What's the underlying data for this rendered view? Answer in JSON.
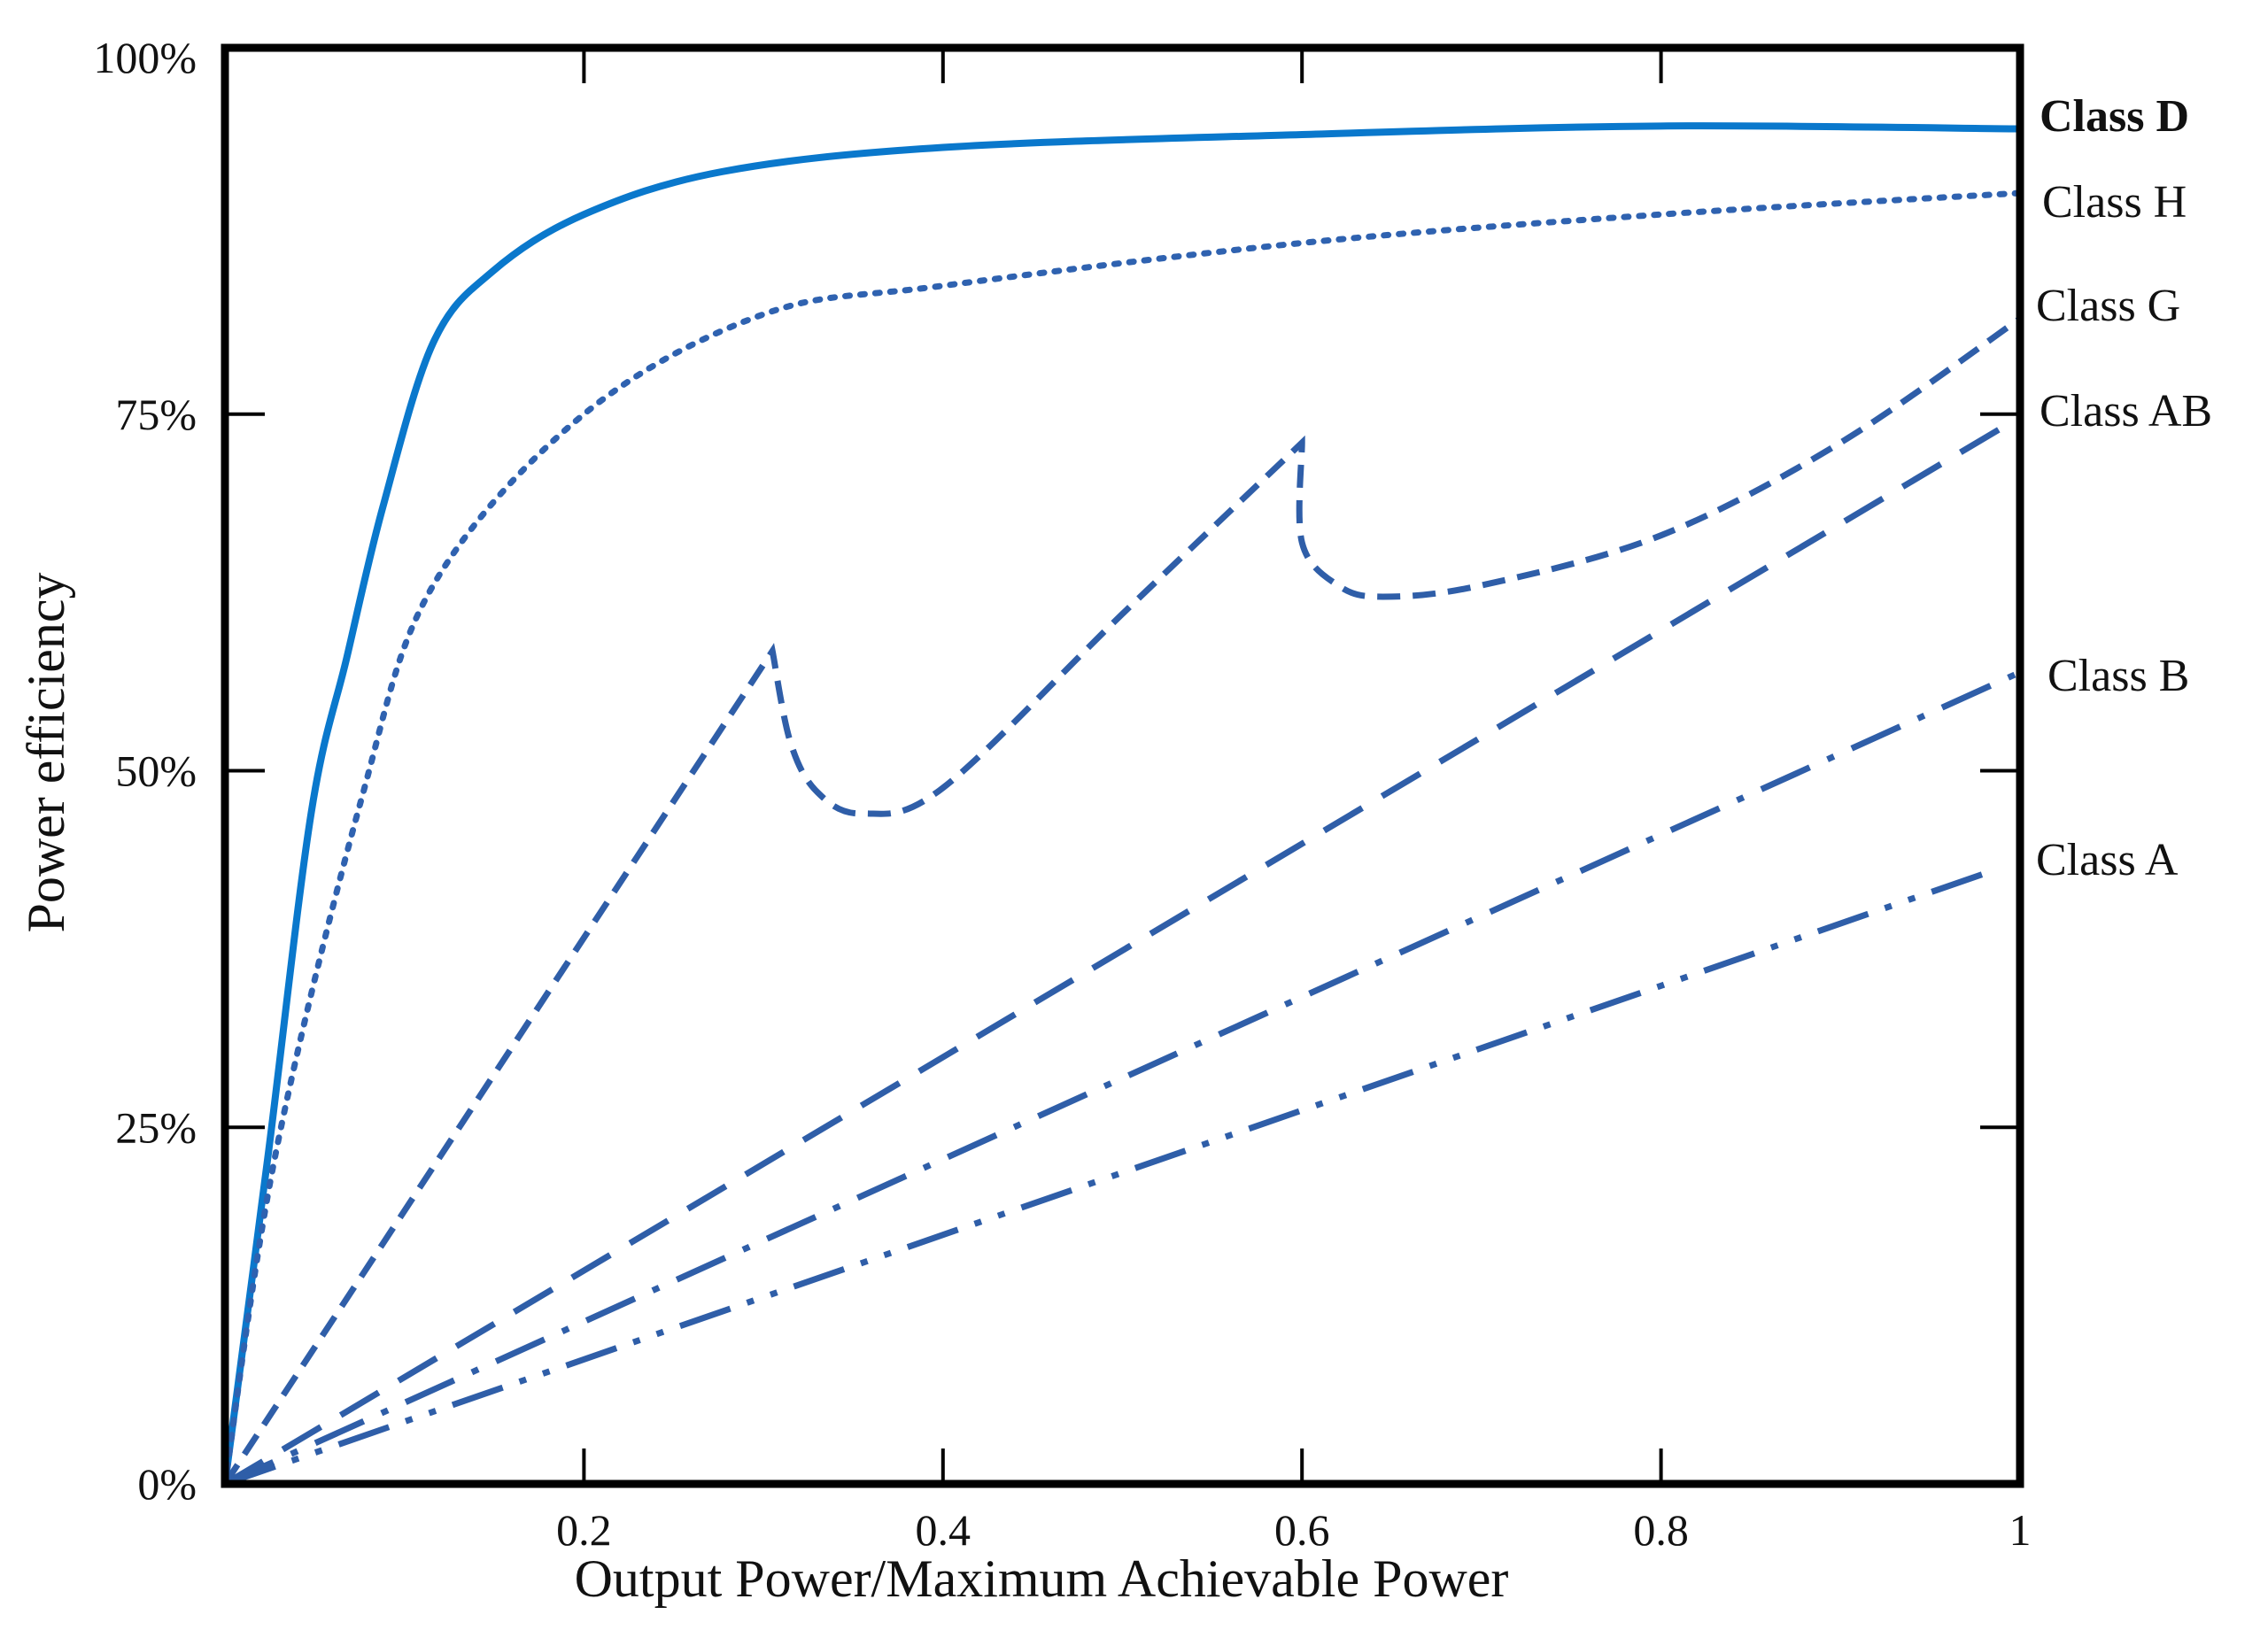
{
  "chart_data": {
    "type": "line",
    "title": "",
    "xlabel": "Output Power/Maximum Achievable Power",
    "ylabel": "Power efficiency",
    "xlim": [
      0,
      1
    ],
    "ylim": [
      0,
      100
    ],
    "x_ticks": [
      "0.2",
      "0.4",
      "0.6",
      "0.8",
      "1"
    ],
    "x_tick_values": [
      0.2,
      0.4,
      0.6,
      0.8,
      1.0
    ],
    "y_ticks": [
      "0%",
      "25%",
      "50%",
      "75%",
      "100%"
    ],
    "y_tick_values": [
      0,
      25,
      50,
      75,
      100
    ],
    "grid": false,
    "legend": "direct labels at right end of each line",
    "series": [
      {
        "name": "Class D",
        "style": "solid",
        "color": "#0a78cc",
        "bold": true,
        "points": [
          [
            0,
            0
          ],
          [
            0.024,
            23
          ],
          [
            0.048,
            47
          ],
          [
            0.068,
            58
          ],
          [
            0.088,
            68.5
          ],
          [
            0.116,
            80
          ],
          [
            0.149,
            85
          ],
          [
            0.2,
            89
          ],
          [
            0.277,
            92
          ],
          [
            0.4,
            93.7
          ],
          [
            0.6,
            94.6
          ],
          [
            0.8,
            95.2
          ],
          [
            1.0,
            95
          ]
        ]
      },
      {
        "name": "Class H",
        "style": "dotted",
        "color": "#2f62b0",
        "points": [
          [
            0,
            0
          ],
          [
            0.028,
            23
          ],
          [
            0.076,
            48
          ],
          [
            0.116,
            63
          ],
          [
            0.2,
            75
          ],
          [
            0.3,
            82
          ],
          [
            0.4,
            84
          ],
          [
            0.6,
            87
          ],
          [
            0.8,
            89
          ],
          [
            1.0,
            90.5
          ]
        ]
      },
      {
        "name": "Class G",
        "style": "dashed",
        "color": "#2f5ea8",
        "points": [
          [
            0,
            0
          ],
          [
            0.305,
            58.4
          ],
          [
            0.315,
            52
          ],
          [
            0.33,
            48.5
          ],
          [
            0.355,
            47
          ],
          [
            0.4,
            48.8
          ],
          [
            0.5,
            61
          ],
          [
            0.6,
            73
          ],
          [
            0.6,
            66
          ],
          [
            0.62,
            63
          ],
          [
            0.645,
            62.2
          ],
          [
            0.7,
            63
          ],
          [
            0.8,
            66.5
          ],
          [
            0.9,
            73
          ],
          [
            1.0,
            81.7
          ]
        ]
      },
      {
        "name": "Class AB",
        "style": "long-dashed",
        "color": "#2f5ea8",
        "points": [
          [
            0,
            0
          ],
          [
            1.0,
            74.8
          ]
        ]
      },
      {
        "name": "Class B",
        "style": "dash-dot",
        "color": "#2f5ea8",
        "points": [
          [
            0,
            0
          ],
          [
            1.0,
            56.9
          ]
        ]
      },
      {
        "name": "Class A",
        "style": "dash-dot-dot",
        "color": "#2f5ea8",
        "points": [
          [
            0,
            0
          ],
          [
            0.985,
            43
          ]
        ]
      }
    ]
  }
}
